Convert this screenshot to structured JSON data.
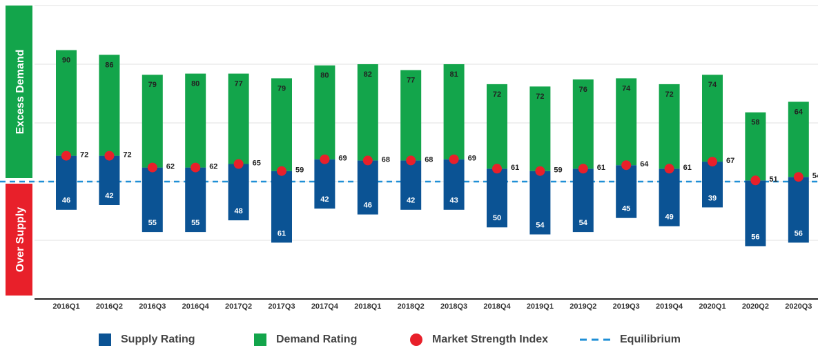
{
  "chart_data": {
    "type": "bar",
    "annotations": [
      "Excess Demand",
      "Over Supply"
    ],
    "categories": [
      "2016Q1",
      "2016Q2",
      "2016Q3",
      "2016Q4",
      "2017Q2",
      "2017Q3",
      "2017Q4",
      "2018Q1",
      "2018Q2",
      "2018Q3",
      "2018Q4",
      "2019Q1",
      "2019Q2",
      "2019Q3",
      "2019Q4",
      "2020Q1",
      "2020Q2",
      "2020Q3"
    ],
    "series": [
      {
        "name": "Supply Rating",
        "color": "#0b5394",
        "values": [
          46,
          42,
          55,
          55,
          48,
          61,
          42,
          46,
          42,
          43,
          50,
          54,
          54,
          45,
          49,
          39,
          56,
          56
        ]
      },
      {
        "name": "Demand Rating",
        "color": "#13a54b",
        "values": [
          90,
          86,
          79,
          80,
          77,
          79,
          80,
          82,
          77,
          81,
          72,
          72,
          76,
          74,
          72,
          74,
          58,
          64
        ]
      },
      {
        "name": "Market Strength Index",
        "color": "#e8202a",
        "values": [
          72,
          72,
          62,
          62,
          65,
          59,
          69,
          68,
          68,
          69,
          61,
          59,
          61,
          64,
          61,
          67,
          51,
          54
        ]
      }
    ],
    "equilibrium": {
      "name": "Equilibrium",
      "value": 50,
      "color": "#1f8fd6"
    },
    "ylim": [
      -50,
      200
    ],
    "yticks": [
      -50,
      0,
      50,
      100,
      150,
      200
    ],
    "grid": true
  }
}
